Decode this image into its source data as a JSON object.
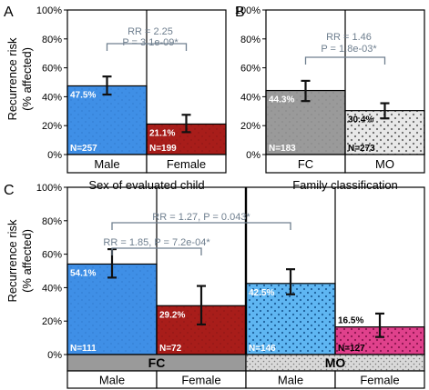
{
  "figure": {
    "y_axis_label_line1": "Recurrence risk",
    "y_axis_label_line2": "(% affected)"
  },
  "colors": {
    "blue": "#3f8fe6",
    "red": "#a81d1a",
    "gray": "#9a9a9a",
    "gray_light": "#e8e8e8",
    "lightblue": "#5fb6f2",
    "pink": "#e0418c",
    "stats": "#6f7f8f"
  },
  "chart_data": [
    {
      "panel": "A",
      "type": "bar",
      "xlabel": "Sex of evaluated child",
      "ylabel": "Recurrence risk (% affected)",
      "ylim": [
        0,
        100
      ],
      "yticks": [
        "0%",
        "20%",
        "40%",
        "60%",
        "80%",
        "100%"
      ],
      "categories": [
        "Male",
        "Female"
      ],
      "values": [
        47.5,
        21.1
      ],
      "value_labels": [
        "47.5%",
        "21.1%"
      ],
      "error": [
        [
          41.5,
          54.0
        ],
        [
          15.5,
          27.5
        ]
      ],
      "n_labels": [
        "N=257",
        "N=199"
      ],
      "n_values": [
        257,
        199
      ],
      "fills": [
        "blue",
        "red"
      ],
      "stats": [
        {
          "line1": "RR = 2.25",
          "line2": "P = 3.1e-09*",
          "between": [
            0,
            1
          ]
        }
      ]
    },
    {
      "panel": "B",
      "type": "bar",
      "xlabel": "Family classification",
      "ylabel": "",
      "ylim": [
        0,
        100
      ],
      "yticks": [
        "0%",
        "20%",
        "40%",
        "60%",
        "80%",
        "100%"
      ],
      "categories": [
        "FC",
        "MO"
      ],
      "values": [
        44.3,
        30.4
      ],
      "value_labels": [
        "44.3%",
        "30.4%"
      ],
      "error": [
        [
          37.0,
          51.0
        ],
        [
          25.0,
          35.5
        ]
      ],
      "n_labels": [
        "N=183",
        "N=273"
      ],
      "n_values": [
        183,
        273
      ],
      "fills": [
        "gray",
        "gray_light"
      ],
      "stats": [
        {
          "line1": "RR = 1.46",
          "line2": "P = 1.8e-03*",
          "between": [
            0,
            1
          ]
        }
      ]
    },
    {
      "panel": "C",
      "type": "bar",
      "xlabel": "",
      "ylabel": "Recurrence risk (% affected)",
      "ylim": [
        0,
        100
      ],
      "yticks": [
        "0%",
        "20%",
        "40%",
        "60%",
        "80%",
        "100%"
      ],
      "groups": [
        "FC",
        "MO"
      ],
      "categories": [
        "Male",
        "Female",
        "Male",
        "Female"
      ],
      "values": [
        54.1,
        29.2,
        42.5,
        16.5
      ],
      "value_labels": [
        "54.1%",
        "29.2%",
        "42.5%",
        "16.5%"
      ],
      "error": [
        [
          46.0,
          63.0
        ],
        [
          18.0,
          41.0
        ],
        [
          36.0,
          51.0
        ],
        [
          10.5,
          24.5
        ]
      ],
      "n_labels": [
        "N=111",
        "N=72",
        "N=146",
        "N=127"
      ],
      "n_values": [
        111,
        72,
        146,
        127
      ],
      "fills": [
        "blue",
        "red",
        "lightblue",
        "pink"
      ],
      "stats": [
        {
          "text": "RR = 1.27, P = 0.043*",
          "between": [
            0,
            2
          ]
        },
        {
          "text": "RR = 1.85, P = 7.2e-04*",
          "between": [
            0,
            1
          ]
        }
      ]
    }
  ]
}
